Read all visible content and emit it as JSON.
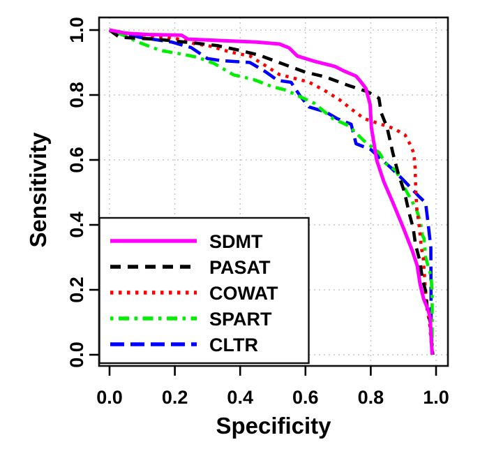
{
  "chart_data": {
    "type": "line",
    "title": "",
    "xlabel": "Specificity",
    "ylabel": "Sensitivity",
    "xlim": [
      0,
      1
    ],
    "ylim": [
      0,
      1
    ],
    "x_ticks": [
      "0.0",
      "0.2",
      "0.4",
      "0.6",
      "0.8",
      "1.0"
    ],
    "y_ticks": [
      "0.0",
      "0.2",
      "0.4",
      "0.6",
      "0.8",
      "1.0"
    ],
    "grid": true,
    "grid_style": "dotted-light-gray",
    "legend_position": "bottom-left",
    "series": [
      {
        "name": "SDMT",
        "color": "#FF00FF",
        "line_style": "solid",
        "points": [
          [
            0,
            1
          ],
          [
            0.05,
            0.99
          ],
          [
            0.12,
            0.986
          ],
          [
            0.22,
            0.984
          ],
          [
            0.24,
            0.972
          ],
          [
            0.33,
            0.968
          ],
          [
            0.45,
            0.963
          ],
          [
            0.52,
            0.957
          ],
          [
            0.55,
            0.945
          ],
          [
            0.575,
            0.92
          ],
          [
            0.63,
            0.903
          ],
          [
            0.69,
            0.888
          ],
          [
            0.72,
            0.873
          ],
          [
            0.755,
            0.858
          ],
          [
            0.77,
            0.84
          ],
          [
            0.785,
            0.82
          ],
          [
            0.798,
            0.77
          ],
          [
            0.802,
            0.7
          ],
          [
            0.818,
            0.6
          ],
          [
            0.84,
            0.533
          ],
          [
            0.868,
            0.468
          ],
          [
            0.9,
            0.39
          ],
          [
            0.928,
            0.318
          ],
          [
            0.942,
            0.275
          ],
          [
            0.951,
            0.217
          ],
          [
            0.962,
            0.172
          ],
          [
            0.973,
            0.145
          ],
          [
            0.982,
            0.115
          ],
          [
            0.985,
            0.05
          ],
          [
            0.988,
            0
          ]
        ]
      },
      {
        "name": "PASAT",
        "color": "#000000",
        "line_style": "dashed",
        "points": [
          [
            0,
            1
          ],
          [
            0.03,
            0.978
          ],
          [
            0.08,
            0.975
          ],
          [
            0.14,
            0.972
          ],
          [
            0.2,
            0.966
          ],
          [
            0.26,
            0.96
          ],
          [
            0.33,
            0.952
          ],
          [
            0.4,
            0.937
          ],
          [
            0.46,
            0.922
          ],
          [
            0.53,
            0.896
          ],
          [
            0.6,
            0.87
          ],
          [
            0.66,
            0.856
          ],
          [
            0.73,
            0.83
          ],
          [
            0.79,
            0.81
          ],
          [
            0.825,
            0.79
          ],
          [
            0.832,
            0.745
          ],
          [
            0.85,
            0.7
          ],
          [
            0.868,
            0.62
          ],
          [
            0.885,
            0.555
          ],
          [
            0.903,
            0.502
          ],
          [
            0.918,
            0.435
          ],
          [
            0.93,
            0.39
          ],
          [
            0.937,
            0.34
          ],
          [
            0.95,
            0.29
          ],
          [
            0.958,
            0.235
          ],
          [
            0.968,
            0.196
          ],
          [
            0.974,
            0.135
          ],
          [
            0.982,
            0.1
          ],
          [
            0.986,
            0.04
          ],
          [
            0.99,
            0
          ]
        ]
      },
      {
        "name": "COWAT",
        "color": "#FF0000",
        "line_style": "dotted",
        "points": [
          [
            0,
            1
          ],
          [
            0.05,
            0.991
          ],
          [
            0.12,
            0.983
          ],
          [
            0.2,
            0.975
          ],
          [
            0.26,
            0.958
          ],
          [
            0.31,
            0.95
          ],
          [
            0.37,
            0.932
          ],
          [
            0.43,
            0.92
          ],
          [
            0.47,
            0.895
          ],
          [
            0.52,
            0.863
          ],
          [
            0.61,
            0.84
          ],
          [
            0.66,
            0.813
          ],
          [
            0.705,
            0.785
          ],
          [
            0.74,
            0.757
          ],
          [
            0.78,
            0.727
          ],
          [
            0.825,
            0.712
          ],
          [
            0.87,
            0.697
          ],
          [
            0.905,
            0.677
          ],
          [
            0.922,
            0.645
          ],
          [
            0.932,
            0.62
          ],
          [
            0.936,
            0.575
          ],
          [
            0.938,
            0.5
          ],
          [
            0.941,
            0.45
          ],
          [
            0.948,
            0.4
          ],
          [
            0.955,
            0.33
          ],
          [
            0.961,
            0.297
          ],
          [
            0.966,
            0.22
          ],
          [
            0.971,
            0.15
          ],
          [
            0.98,
            0.1
          ],
          [
            0.986,
            0.03
          ],
          [
            0.99,
            0
          ]
        ]
      },
      {
        "name": "SPART",
        "color": "#00EE00",
        "line_style": "dotdash",
        "points": [
          [
            0,
            1
          ],
          [
            0.04,
            0.985
          ],
          [
            0.09,
            0.962
          ],
          [
            0.156,
            0.937
          ],
          [
            0.21,
            0.928
          ],
          [
            0.27,
            0.916
          ],
          [
            0.32,
            0.897
          ],
          [
            0.38,
            0.862
          ],
          [
            0.44,
            0.848
          ],
          [
            0.5,
            0.825
          ],
          [
            0.54,
            0.815
          ],
          [
            0.626,
            0.775
          ],
          [
            0.684,
            0.727
          ],
          [
            0.733,
            0.705
          ],
          [
            0.778,
            0.66
          ],
          [
            0.826,
            0.622
          ],
          [
            0.845,
            0.59
          ],
          [
            0.877,
            0.568
          ],
          [
            0.9,
            0.52
          ],
          [
            0.92,
            0.484
          ],
          [
            0.94,
            0.447
          ],
          [
            0.952,
            0.41
          ],
          [
            0.957,
            0.37
          ],
          [
            0.963,
            0.358
          ],
          [
            0.968,
            0.3
          ],
          [
            0.985,
            0.24
          ],
          [
            0.988,
            0.18
          ],
          [
            0.988,
            0.05
          ],
          [
            0.99,
            0
          ]
        ]
      },
      {
        "name": "CLTR",
        "color": "#0000FF",
        "line_style": "longdash",
        "points": [
          [
            0,
            1
          ],
          [
            0.04,
            0.99
          ],
          [
            0.09,
            0.978
          ],
          [
            0.13,
            0.972
          ],
          [
            0.19,
            0.963
          ],
          [
            0.25,
            0.946
          ],
          [
            0.3,
            0.912
          ],
          [
            0.34,
            0.906
          ],
          [
            0.43,
            0.9
          ],
          [
            0.477,
            0.872
          ],
          [
            0.515,
            0.845
          ],
          [
            0.556,
            0.839
          ],
          [
            0.583,
            0.798
          ],
          [
            0.611,
            0.763
          ],
          [
            0.662,
            0.748
          ],
          [
            0.697,
            0.727
          ],
          [
            0.74,
            0.71
          ],
          [
            0.755,
            0.65
          ],
          [
            0.8,
            0.632
          ],
          [
            0.832,
            0.602
          ],
          [
            0.862,
            0.576
          ],
          [
            0.905,
            0.533
          ],
          [
            0.945,
            0.49
          ],
          [
            0.968,
            0.468
          ],
          [
            0.975,
            0.41
          ],
          [
            0.984,
            0.33
          ],
          [
            0.985,
            0.08
          ],
          [
            0.988,
            0
          ]
        ]
      }
    ]
  }
}
